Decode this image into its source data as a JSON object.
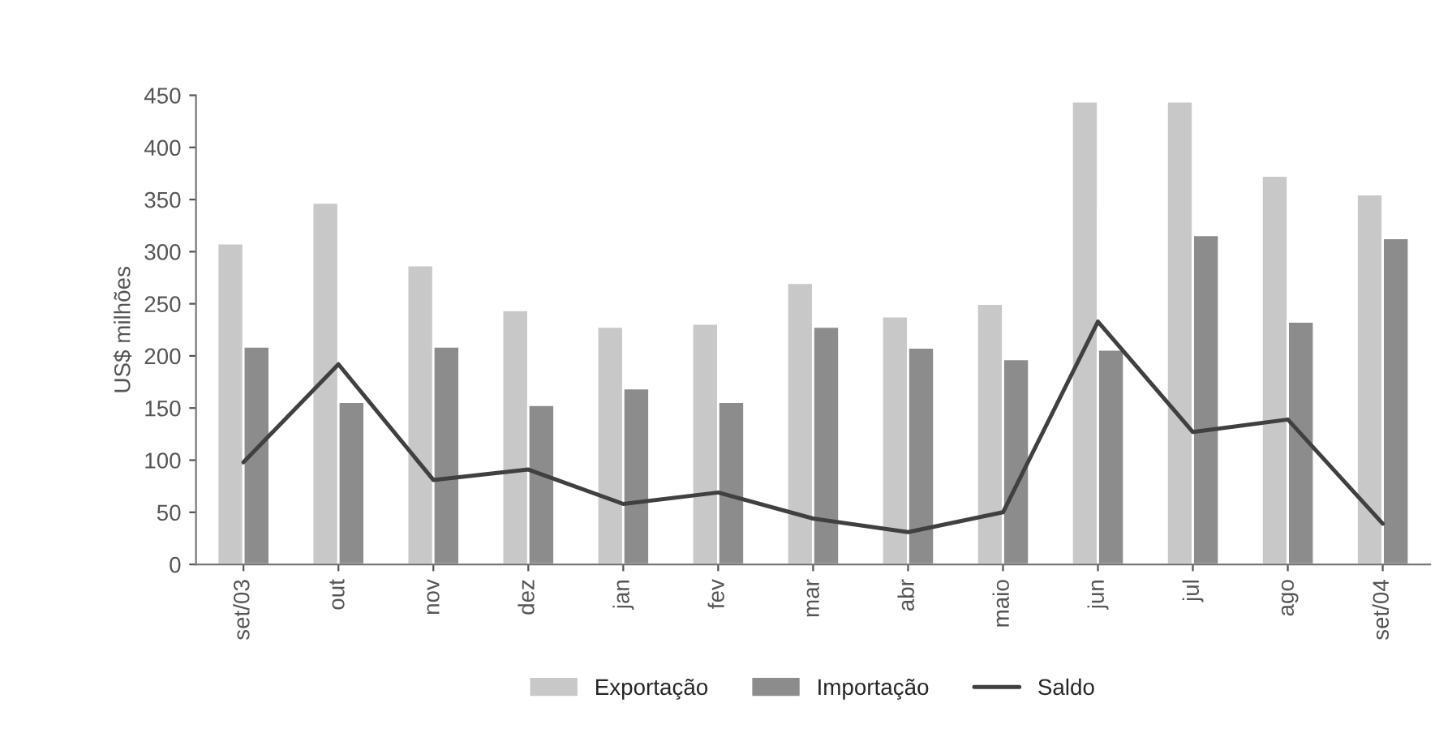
{
  "chart_data": {
    "type": "bar",
    "ylabel": "US$ milhões",
    "categories": [
      "set/03",
      "out",
      "nov",
      "dez",
      "jan",
      "fev",
      "mar",
      "abr",
      "maio",
      "jun",
      "jul",
      "ago",
      "set/04"
    ],
    "series": [
      {
        "name": "Exportação",
        "color": "#c8c8c8",
        "values": [
          308,
          347,
          287,
          244,
          228,
          231,
          270,
          238,
          250,
          444,
          444,
          373,
          355
        ]
      },
      {
        "name": "Importação",
        "color": "#8c8c8c",
        "values": [
          209,
          156,
          209,
          153,
          169,
          156,
          228,
          208,
          197,
          206,
          316,
          233,
          313
        ]
      },
      {
        "name": "Saldo",
        "type": "line",
        "color": "#404040",
        "values": [
          98,
          192,
          81,
          91,
          58,
          69,
          44,
          31,
          50,
          233,
          127,
          139,
          39
        ]
      }
    ],
    "ylim": [
      0,
      450
    ],
    "yticks": [
      0,
      50,
      100,
      150,
      200,
      250,
      300,
      350,
      400,
      450
    ],
    "legend": "bottom"
  }
}
